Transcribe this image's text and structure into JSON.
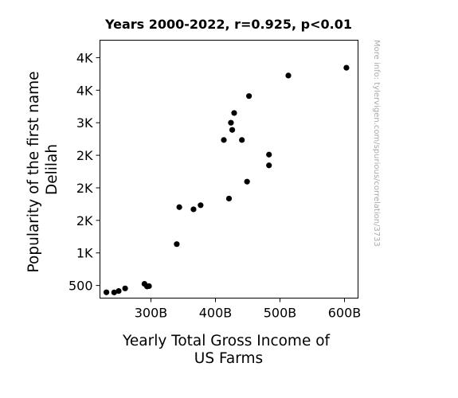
{
  "chart_data": {
    "type": "scatter",
    "title": "Years 2000-2022, r=0.925, p<0.01",
    "xlabel": [
      "Yearly Total Gross Income of",
      "US Farms"
    ],
    "ylabel": [
      "Popularity of the first name",
      "Delilah"
    ],
    "xlim": [
      221,
      621
    ],
    "ylim": [
      306,
      4268
    ],
    "x_ticks": [
      {
        "value": 300,
        "label": "300B"
      },
      {
        "value": 400,
        "label": "400B"
      },
      {
        "value": 500,
        "label": "500B"
      },
      {
        "value": 600,
        "label": "600B"
      }
    ],
    "y_ticks": [
      {
        "value": 500,
        "label": "500"
      },
      {
        "value": 1000,
        "label": "1K"
      },
      {
        "value": 1500,
        "label": "2K"
      },
      {
        "value": 2000,
        "label": "2K"
      },
      {
        "value": 2500,
        "label": "2K"
      },
      {
        "value": 3000,
        "label": "3K"
      },
      {
        "value": 3500,
        "label": "4K"
      },
      {
        "value": 4000,
        "label": "4K"
      }
    ],
    "grid": false,
    "marker_color": "#000000",
    "points": [
      {
        "x": 231,
        "y": 395
      },
      {
        "x": 243,
        "y": 393
      },
      {
        "x": 250,
        "y": 415
      },
      {
        "x": 260,
        "y": 455
      },
      {
        "x": 290,
        "y": 525
      },
      {
        "x": 294,
        "y": 485
      },
      {
        "x": 297,
        "y": 490
      },
      {
        "x": 340,
        "y": 1135
      },
      {
        "x": 344,
        "y": 1703
      },
      {
        "x": 366,
        "y": 1670
      },
      {
        "x": 377,
        "y": 1733
      },
      {
        "x": 413,
        "y": 2735
      },
      {
        "x": 421,
        "y": 1835
      },
      {
        "x": 424,
        "y": 3000
      },
      {
        "x": 426,
        "y": 2890
      },
      {
        "x": 429,
        "y": 3150
      },
      {
        "x": 441,
        "y": 2735
      },
      {
        "x": 449,
        "y": 2095
      },
      {
        "x": 452,
        "y": 3410
      },
      {
        "x": 483,
        "y": 2510
      },
      {
        "x": 483,
        "y": 2345
      },
      {
        "x": 513,
        "y": 3725
      },
      {
        "x": 603,
        "y": 3845
      }
    ]
  },
  "watermark": "More info: tylervigen.com/spurious/correlation/3733"
}
